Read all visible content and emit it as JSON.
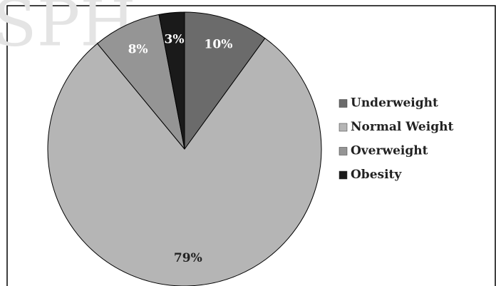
{
  "chart_data": {
    "type": "pie",
    "watermark": "SPH",
    "categories": [
      "Underweight",
      "Normal Weight",
      "Overweight",
      "Obesity"
    ],
    "values": [
      10,
      79,
      8,
      3
    ],
    "value_labels": [
      "10%",
      "79%",
      "8%",
      "3%"
    ],
    "colors": [
      "#6b6b6b",
      "#b5b5b5",
      "#959595",
      "#1a1a1a"
    ],
    "legend": "right"
  }
}
